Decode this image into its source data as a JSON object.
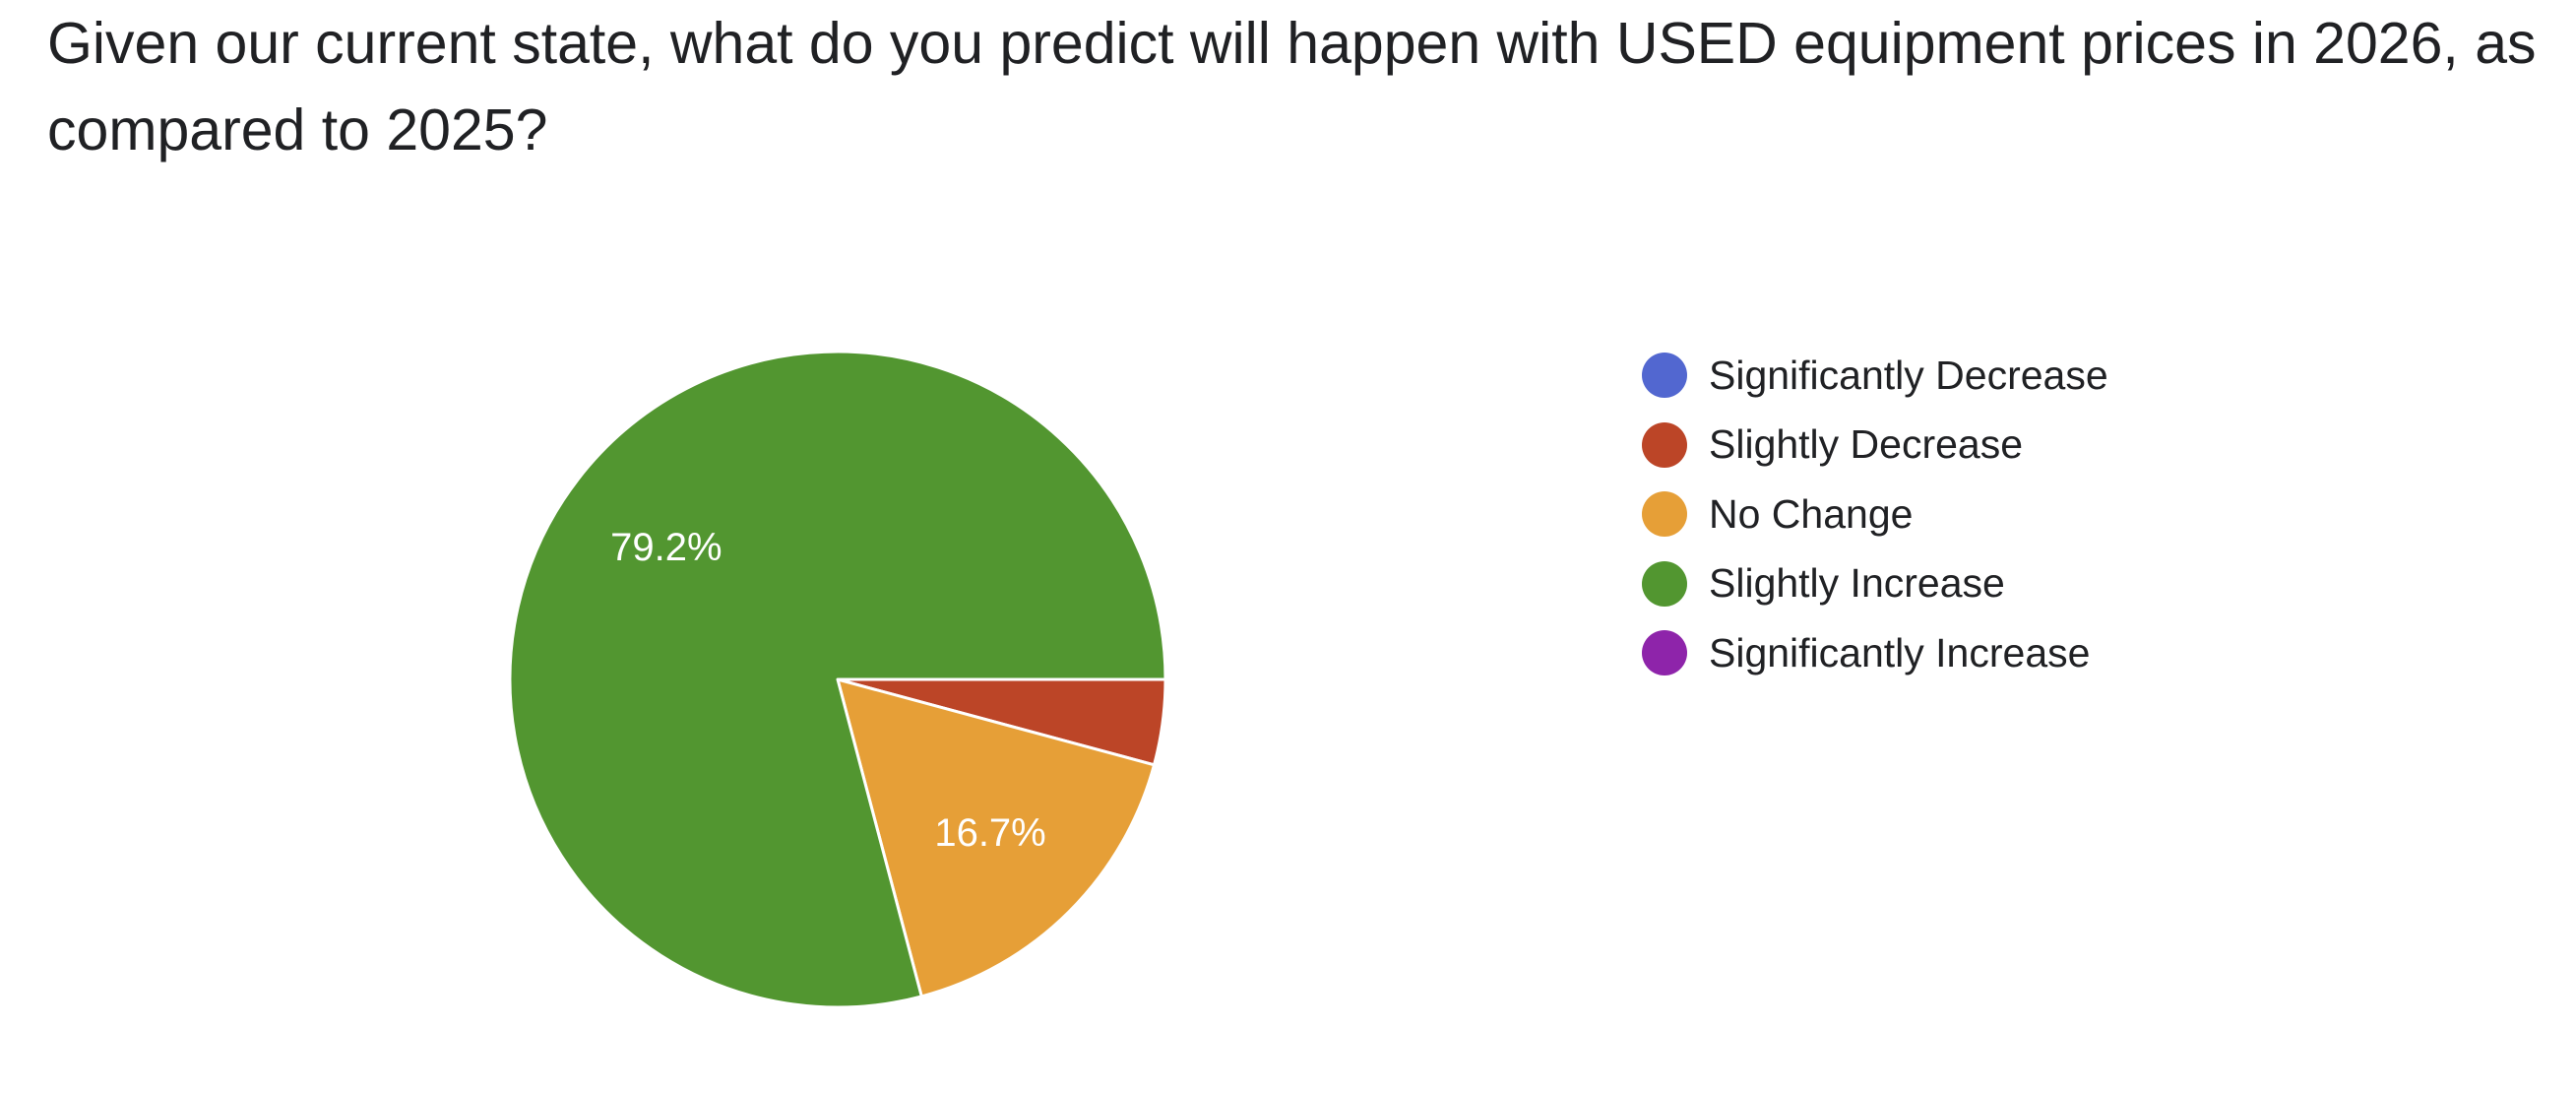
{
  "question": {
    "title": "Given our current state, what do you predict will happen with USED equipment prices in 2026, as compared to 2025?"
  },
  "chart_data": {
    "type": "pie",
    "title": "",
    "categories": [
      "Significantly Decrease",
      "Slightly Decrease",
      "No Change",
      "Slightly Increase",
      "Significantly Increase"
    ],
    "values": [
      0,
      4.2,
      16.7,
      79.2,
      0
    ],
    "data_labels": [
      "",
      "",
      "16.7%",
      "79.2%",
      ""
    ],
    "colors": [
      "#5267d0",
      "#bc4527",
      "#e69f37",
      "#529630",
      "#8e24aa"
    ],
    "legend_position": "right"
  }
}
